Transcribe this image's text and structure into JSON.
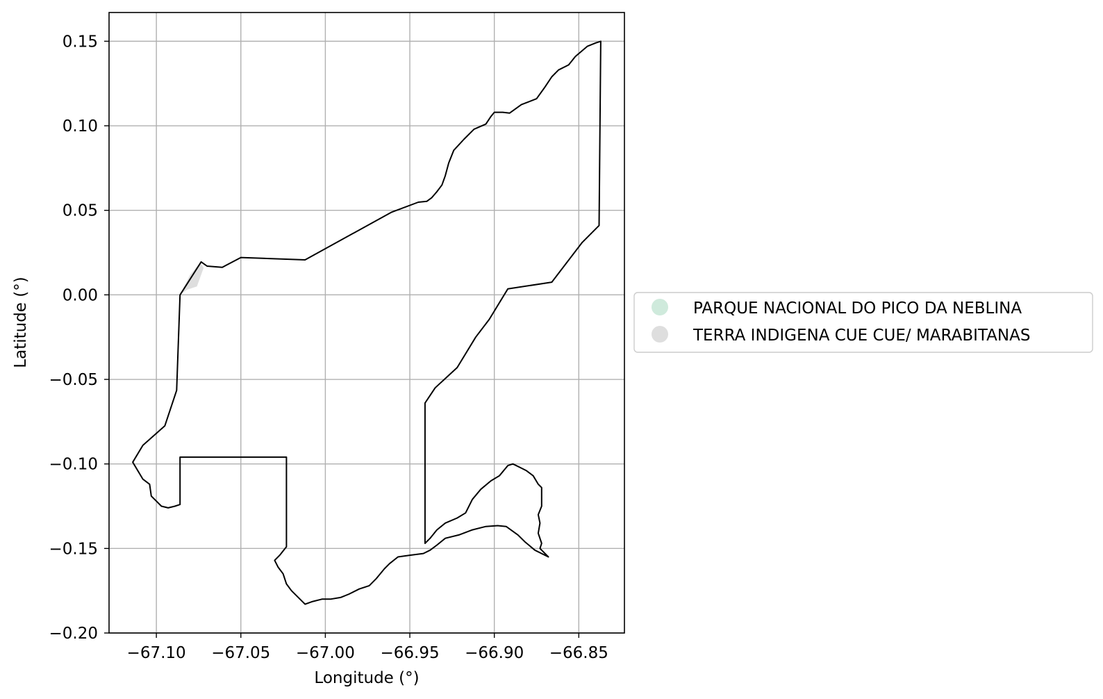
{
  "chart_data": {
    "type": "map",
    "title": "",
    "xlabel": "Longitude (°)",
    "ylabel": "Latitude (°)",
    "xlim": [
      -67.128,
      -66.823
    ],
    "ylim": [
      -0.2,
      0.167
    ],
    "grid": true,
    "x_ticks": [
      -67.1,
      -67.05,
      -67.0,
      -66.95,
      -66.9,
      -66.85
    ],
    "x_tick_labels": [
      "−67.10",
      "−67.05",
      "−67.00",
      "−66.95",
      "−66.90",
      "−66.85"
    ],
    "y_ticks": [
      0.15,
      0.1,
      0.05,
      0.0,
      -0.05,
      -0.1,
      -0.15,
      -0.2
    ],
    "y_tick_labels": [
      "0.15",
      "0.10",
      "0.05",
      "0.00",
      "−0.05",
      "−0.10",
      "−0.15",
      "−0.20"
    ],
    "legend": {
      "placement": "right",
      "entries": [
        {
          "label": "PARQUE NACIONAL DO PICO DA NEBLINA",
          "color": "#cfeadc"
        },
        {
          "label": "TERRA INDIGENA CUE CUE/ MARABITANAS",
          "color": "#dedede"
        }
      ]
    },
    "polygons": [
      {
        "name": "terra-indigena-sliver",
        "fill": "#dedede",
        "stroke": "none",
        "coords": [
          [
            -67.086,
            0.0
          ],
          [
            -67.082,
            0.003
          ],
          [
            -67.076,
            0.005
          ],
          [
            -67.072,
            0.016
          ],
          [
            -67.074,
            0.019
          ],
          [
            -67.08,
            0.012
          ],
          [
            -67.086,
            0.0
          ]
        ]
      },
      {
        "name": "parque-nacional-boundary",
        "fill": "none",
        "stroke": "#000000",
        "coords": [
          [
            -67.086,
            0.0
          ],
          [
            -67.0735,
            0.0195
          ],
          [
            -67.07,
            0.017
          ],
          [
            -67.061,
            0.0163
          ],
          [
            -67.05,
            0.0221
          ],
          [
            -67.012,
            0.0207
          ],
          [
            -66.961,
            0.0488
          ],
          [
            -66.945,
            0.0548
          ],
          [
            -66.94,
            0.0553
          ],
          [
            -66.937,
            0.0575
          ],
          [
            -66.934,
            0.061
          ],
          [
            -66.931,
            0.065
          ],
          [
            -66.929,
            0.0705
          ],
          [
            -66.927,
            0.078
          ],
          [
            -66.924,
            0.0855
          ],
          [
            -66.918,
            0.092
          ],
          [
            -66.912,
            0.098
          ],
          [
            -66.905,
            0.101
          ],
          [
            -66.902,
            0.1055
          ],
          [
            -66.9,
            0.108
          ],
          [
            -66.895,
            0.108
          ],
          [
            -66.891,
            0.1075
          ],
          [
            -66.884,
            0.1125
          ],
          [
            -66.875,
            0.116
          ],
          [
            -66.87,
            0.123
          ],
          [
            -66.866,
            0.129
          ],
          [
            -66.862,
            0.133
          ],
          [
            -66.856,
            0.136
          ],
          [
            -66.852,
            0.141
          ],
          [
            -66.845,
            0.147
          ],
          [
            -66.84,
            0.149
          ],
          [
            -66.837,
            0.15
          ],
          [
            -66.838,
            0.041
          ],
          [
            -66.848,
            0.031
          ],
          [
            -66.866,
            0.0075
          ],
          [
            -66.892,
            0.0035
          ],
          [
            -66.903,
            -0.0145
          ],
          [
            -66.911,
            -0.025
          ],
          [
            -66.922,
            -0.043
          ],
          [
            -66.935,
            -0.055
          ],
          [
            -66.941,
            -0.064
          ],
          [
            -66.941,
            -0.147
          ],
          [
            -66.938,
            -0.144
          ],
          [
            -66.934,
            -0.139
          ],
          [
            -66.929,
            -0.135
          ],
          [
            -66.922,
            -0.132
          ],
          [
            -66.917,
            -0.129
          ],
          [
            -66.913,
            -0.121
          ],
          [
            -66.908,
            -0.115
          ],
          [
            -66.902,
            -0.11
          ],
          [
            -66.897,
            -0.107
          ],
          [
            -66.892,
            -0.101
          ],
          [
            -66.889,
            -0.1
          ],
          [
            -66.885,
            -0.102
          ],
          [
            -66.881,
            -0.104
          ],
          [
            -66.877,
            -0.107
          ],
          [
            -66.874,
            -0.112
          ],
          [
            -66.872,
            -0.114
          ],
          [
            -66.872,
            -0.125
          ],
          [
            -66.874,
            -0.13
          ],
          [
            -66.873,
            -0.135
          ],
          [
            -66.874,
            -0.141
          ],
          [
            -66.872,
            -0.147
          ],
          [
            -66.873,
            -0.15
          ],
          [
            -66.868,
            -0.155
          ],
          [
            -66.876,
            -0.151
          ],
          [
            -66.882,
            -0.146
          ],
          [
            -66.886,
            -0.142
          ],
          [
            -66.893,
            -0.137
          ],
          [
            -66.898,
            -0.1365
          ],
          [
            -66.905,
            -0.137
          ],
          [
            -66.913,
            -0.139
          ],
          [
            -66.921,
            -0.142
          ],
          [
            -66.929,
            -0.144
          ],
          [
            -66.934,
            -0.148
          ],
          [
            -66.938,
            -0.151
          ],
          [
            -66.942,
            -0.153
          ],
          [
            -66.95,
            -0.154
          ],
          [
            -66.957,
            -0.155
          ],
          [
            -66.962,
            -0.159
          ],
          [
            -66.965,
            -0.162
          ],
          [
            -66.97,
            -0.168
          ],
          [
            -66.974,
            -0.172
          ],
          [
            -66.98,
            -0.174
          ],
          [
            -66.986,
            -0.177
          ],
          [
            -66.991,
            -0.179
          ],
          [
            -66.997,
            -0.18
          ],
          [
            -67.002,
            -0.18
          ],
          [
            -67.008,
            -0.1815
          ],
          [
            -67.012,
            -0.183
          ],
          [
            -67.015,
            -0.18
          ],
          [
            -67.02,
            -0.175
          ],
          [
            -67.023,
            -0.171
          ],
          [
            -67.025,
            -0.165
          ],
          [
            -67.028,
            -0.161
          ],
          [
            -67.03,
            -0.157
          ],
          [
            -67.027,
            -0.154
          ],
          [
            -67.023,
            -0.149
          ],
          [
            -67.023,
            -0.096
          ],
          [
            -67.086,
            -0.096
          ],
          [
            -67.086,
            -0.124
          ],
          [
            -67.089,
            -0.125
          ],
          [
            -67.093,
            -0.126
          ],
          [
            -67.097,
            -0.125
          ],
          [
            -67.1,
            -0.122
          ],
          [
            -67.103,
            -0.119
          ],
          [
            -67.104,
            -0.112
          ],
          [
            -67.108,
            -0.109
          ],
          [
            -67.114,
            -0.099
          ],
          [
            -67.108,
            -0.089
          ],
          [
            -67.095,
            -0.0775
          ],
          [
            -67.088,
            -0.0565
          ],
          [
            -67.086,
            0.0
          ]
        ]
      }
    ]
  }
}
